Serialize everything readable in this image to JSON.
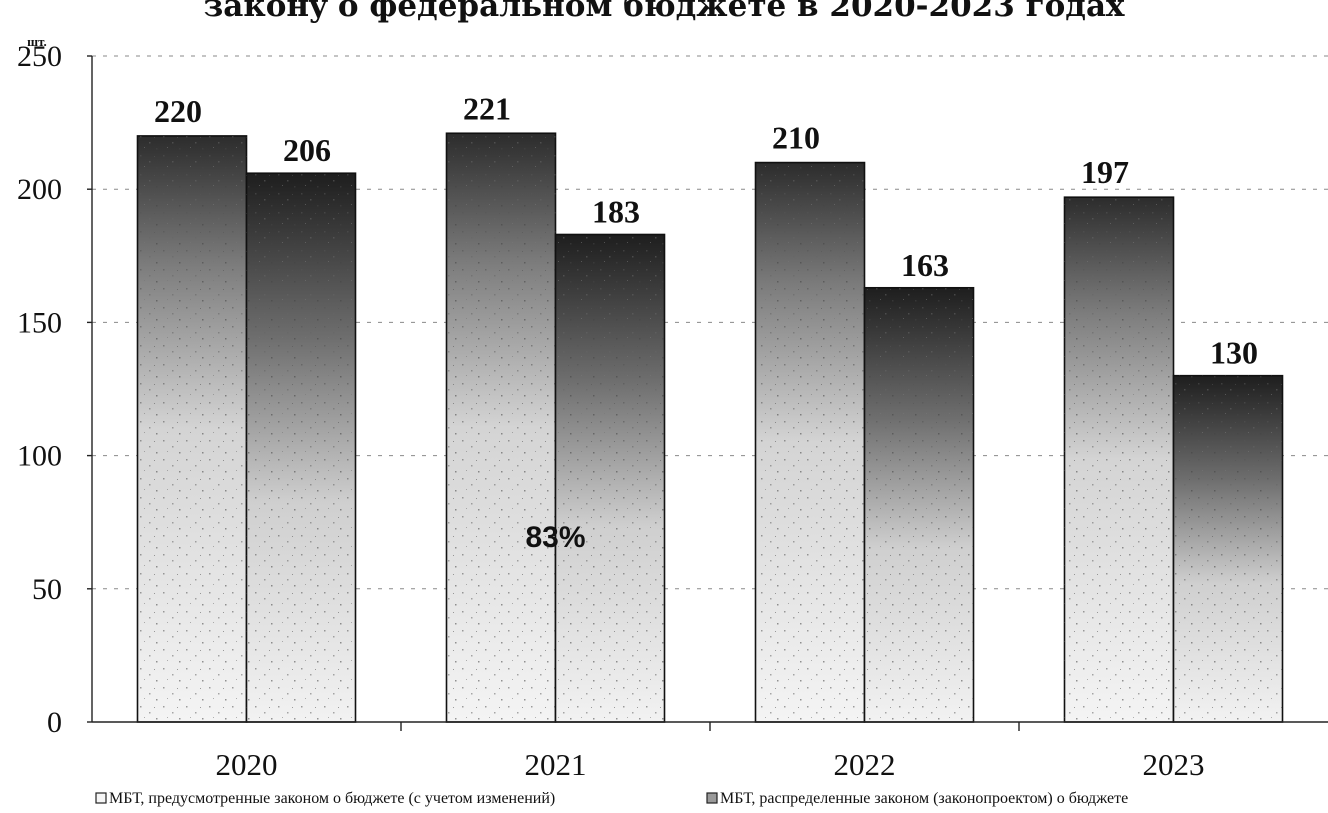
{
  "chart_data": {
    "type": "bar",
    "title": "законy о федеральном бюджете в 2020-2023 годах",
    "ylabel": "шт.",
    "xlabel": "",
    "categories": [
      "2020",
      "2021",
      "2022",
      "2023"
    ],
    "series": [
      {
        "name": "МБТ, предусмотренные законом о бюджете (с учетом изменений)",
        "values": [
          220,
          221,
          210,
          197
        ]
      },
      {
        "name": "МБТ, распределенные законом (законопроектом) о бюджете",
        "values": [
          206,
          183,
          163,
          130
        ]
      }
    ],
    "ylim": [
      0,
      250
    ],
    "yticks": [
      0,
      50,
      100,
      150,
      200,
      250
    ],
    "grid": true,
    "legend_position": "bottom",
    "annotations": [
      {
        "text": "83%",
        "category": "2021"
      }
    ]
  }
}
